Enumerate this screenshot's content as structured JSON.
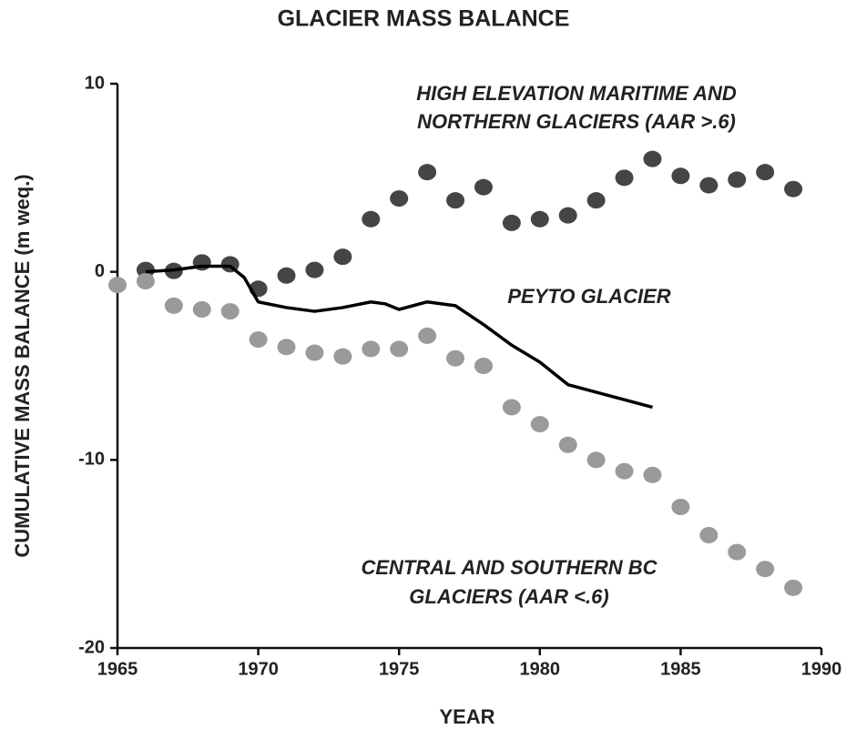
{
  "chart_data": {
    "type": "scatter",
    "title": "GLACIER MASS BALANCE",
    "x_label": "YEAR",
    "y_label": "CUMULATIVE MASS BALANCE (m weq.)",
    "xlim": [
      1965,
      1990
    ],
    "xticks": [
      1965,
      1970,
      1975,
      1980,
      1985,
      1990
    ],
    "ylim": [
      -20,
      10
    ],
    "yticks": [
      10,
      0,
      -10,
      -20
    ],
    "annotations": [
      "HIGH ELEVATION MARITIME AND",
      "NORTHERN GLACIERS (AAR >.6)",
      "PEYTO GLACIER",
      "CENTRAL AND SOUTHERN BC",
      "GLACIERS (AAR <.6)"
    ],
    "series": [
      {
        "name": "High elevation maritime and northern glaciers",
        "kind": "points",
        "color": "#454545",
        "x": [
          1966,
          1967,
          1968,
          1969,
          1970,
          1971,
          1972,
          1973,
          1974,
          1975,
          1976,
          1977,
          1978,
          1979,
          1980,
          1981,
          1982,
          1983,
          1984,
          1985,
          1986,
          1987,
          1988,
          1989
        ],
        "values": [
          0.1,
          0.05,
          0.5,
          0.4,
          -0.9,
          -0.2,
          0.1,
          0.8,
          2.8,
          3.9,
          5.3,
          3.8,
          4.5,
          2.6,
          2.8,
          3.0,
          3.8,
          5.0,
          6.0,
          5.1,
          4.6,
          4.9,
          5.3,
          4.4
        ]
      },
      {
        "name": "Central and southern BC glaciers",
        "kind": "points",
        "color": "#9a9a9a",
        "x": [
          1965,
          1966,
          1967,
          1968,
          1969,
          1970,
          1971,
          1972,
          1973,
          1974,
          1975,
          1976,
          1977,
          1978,
          1979,
          1980,
          1981,
          1982,
          1983,
          1984,
          1985,
          1986,
          1987,
          1988,
          1989
        ],
        "values": [
          -0.7,
          -0.5,
          -1.8,
          -2.0,
          -2.1,
          -3.6,
          -4.0,
          -4.3,
          -4.5,
          -4.1,
          -4.1,
          -3.4,
          -4.6,
          -5.0,
          -7.2,
          -8.1,
          -9.2,
          -10.0,
          -10.6,
          -10.8,
          -12.5,
          -14.0,
          -14.9,
          -15.8,
          -16.8
        ]
      },
      {
        "name": "Peyto Glacier",
        "kind": "line",
        "color": "#000000",
        "x": [
          1966,
          1967,
          1968,
          1969,
          1969.5,
          1970,
          1971,
          1972,
          1973,
          1974,
          1974.5,
          1975,
          1976,
          1977,
          1978,
          1979,
          1980,
          1981,
          1982,
          1983,
          1984
        ],
        "values": [
          0,
          0.1,
          0.3,
          0.3,
          -0.3,
          -1.6,
          -1.9,
          -2.1,
          -1.9,
          -1.6,
          -1.7,
          -2.0,
          -1.6,
          -1.8,
          -2.8,
          -3.9,
          -4.8,
          -6.0,
          -6.4,
          -6.8,
          -7.2
        ]
      }
    ]
  }
}
